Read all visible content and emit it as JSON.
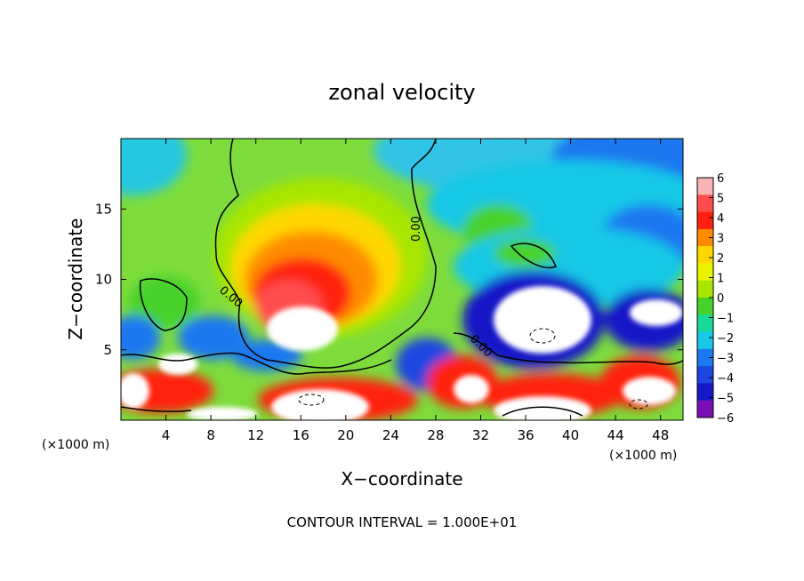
{
  "chart_data": {
    "type": "heatmap",
    "title": "zonal velocity",
    "xlabel": "X−coordinate",
    "ylabel": "Z−coordinate",
    "x_unit_left": "(×1000 m)",
    "x_unit_right": "(×1000 m)",
    "xlim": [
      0,
      50
    ],
    "ylim": [
      0,
      20
    ],
    "x_ticks": [
      4,
      8,
      12,
      16,
      20,
      24,
      28,
      32,
      36,
      40,
      44,
      48
    ],
    "y_ticks": [
      5,
      10,
      15
    ],
    "colorbar": {
      "range": [
        -6,
        6
      ],
      "ticks": [
        "6",
        "5",
        "4",
        "3",
        "2",
        "1",
        "0",
        "−1",
        "−2",
        "−3",
        "−4",
        "−5",
        "−6"
      ],
      "colors": [
        "#f6b4b4",
        "#ff4d4d",
        "#ff2010",
        "#ff8c00",
        "#ffd700",
        "#e8f500",
        "#a8e600",
        "#46d22a",
        "#19d99a",
        "#18c8e6",
        "#1a78f0",
        "#1e46e0",
        "#1818c8",
        "#7a10b4"
      ]
    },
    "contour_label": "0.00",
    "note": "CONTOUR INTERVAL = 1.000E+01"
  }
}
